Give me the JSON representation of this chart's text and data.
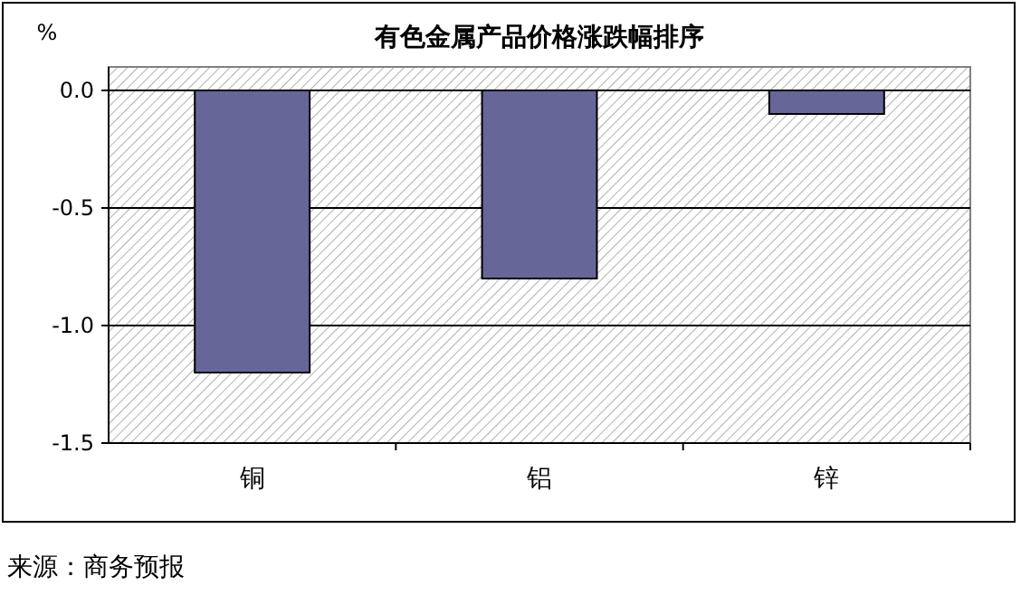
{
  "chart_data": {
    "type": "bar",
    "title": "有色金属产品价格涨跌幅排序",
    "ylabel": "%",
    "categories": [
      "铜",
      "铝",
      "锌"
    ],
    "values": [
      -1.2,
      -0.8,
      -0.1
    ],
    "color": "#666699",
    "ylim": [
      -1.5,
      0.1
    ],
    "yticks": [
      {
        "value": 0,
        "label": "0.0"
      },
      {
        "value": -0.5,
        "label": "-0.5"
      },
      {
        "value": -1,
        "label": "-1.0"
      },
      {
        "value": -1.5,
        "label": "-1.5"
      }
    ],
    "grid": "y",
    "annotations": [
      "来源：商务预报"
    ]
  }
}
